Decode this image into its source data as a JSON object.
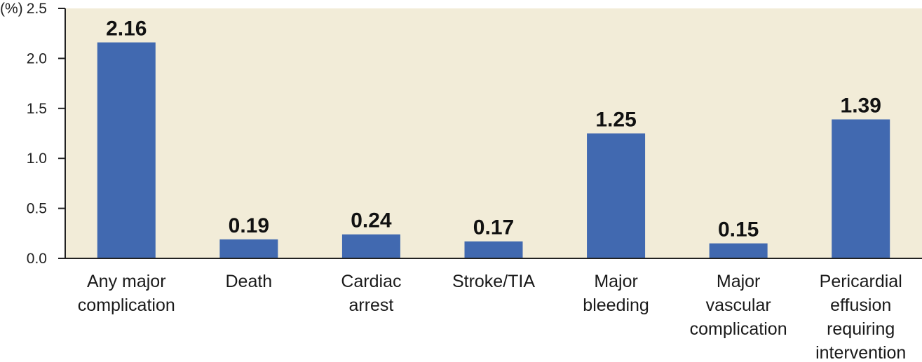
{
  "chart_data": {
    "type": "bar",
    "y_unit_label": "(%)",
    "categories": [
      [
        "Any major",
        "complication"
      ],
      [
        "Death"
      ],
      [
        "Cardiac",
        "arrest"
      ],
      [
        "Stroke/TIA"
      ],
      [
        "Major",
        "bleeding"
      ],
      [
        "Major",
        "vascular",
        "complication"
      ],
      [
        "Pericardial",
        "effusion",
        "requiring",
        "intervention"
      ]
    ],
    "values": [
      2.16,
      0.19,
      0.24,
      0.17,
      1.25,
      0.15,
      1.39
    ],
    "value_labels": [
      "2.16",
      "0.19",
      "0.24",
      "0.17",
      "1.25",
      "0.15",
      "1.39"
    ],
    "ylim": [
      0,
      2.5
    ],
    "yticks": [
      0.0,
      0.5,
      1.0,
      1.5,
      2.0,
      2.5
    ],
    "ytick_labels": [
      "0.0",
      "0.5",
      "1.0",
      "1.5",
      "2.0",
      "2.5"
    ],
    "grid": false,
    "colors": {
      "bar": "#4169b0",
      "plot_background": "#f2ecd8",
      "axis": "#222222"
    }
  }
}
